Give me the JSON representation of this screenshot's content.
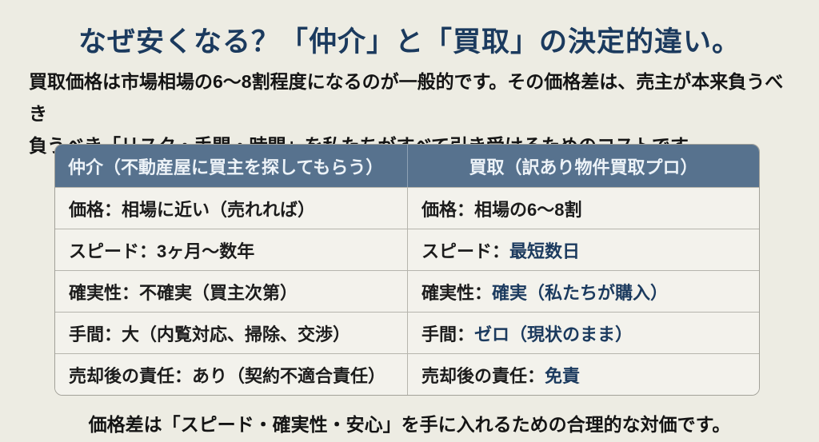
{
  "page": {
    "title": "なぜ安くなる？「仲介」と「買取」の決定的違い。",
    "subtitle_line1": "買取価格は市場相場の6〜8割程度になるのが一般的です。その価格差は、売主が本来負うべき",
    "subtitle_line2": "負うべき「リスク・手間・時間」を私たちがすべて引き受けるためのコストです。",
    "footer": "価格差は「スピード・確実性・安心」を手に入れるための合理的な対価です。"
  },
  "table": {
    "headers": {
      "broker": "仲介（不動産屋に買主を探してもらう）",
      "buyer": "買取（訳あり物件買取プロ）"
    },
    "rows": [
      {
        "left": "価格：相場に近い（売れれば）",
        "right_plain": "価格：相場の6〜8割",
        "right_accent": ""
      },
      {
        "left": "スピード：3ヶ月〜数年",
        "right_plain": "スピード：",
        "right_accent": "最短数日"
      },
      {
        "left": "確実性：不確実（買主次第）",
        "right_plain": "確実性：",
        "right_accent": "確実（私たちが購入）"
      },
      {
        "left": "手間：大（内覧対応、掃除、交渉）",
        "right_plain": "手間：",
        "right_accent": "ゼロ（現状のまま）"
      },
      {
        "left": "売却後の責任：あり（契約不適合責任）",
        "right_plain": "売却後の責任：",
        "right_accent": "免責"
      }
    ]
  },
  "colors": {
    "page_bg": "#edece3",
    "title_navy": "#1b3a5e",
    "header_bg": "#57728e",
    "header_text": "#edf3f8",
    "cell_bg": "#f3f2ec",
    "border_gray": "#b6b5ad",
    "accent_navy": "#1b3a5e",
    "body_text": "#1c1c1c"
  }
}
